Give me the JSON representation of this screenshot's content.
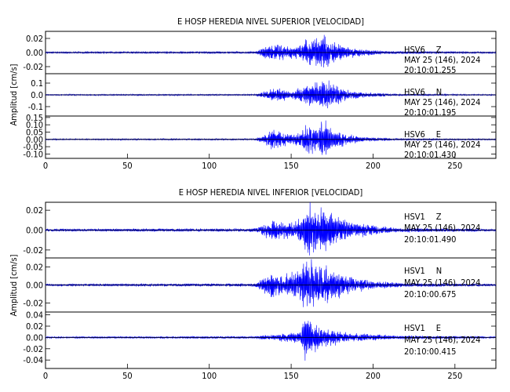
{
  "chart_data": [
    {
      "type": "line",
      "title": "E HOSP HEREDIA NIVEL SUPERIOR [VELOCIDAD]",
      "ylabel": "Amplitud [cm/s]",
      "xlim": [
        0,
        275
      ],
      "x_ticks": [
        "0",
        "50",
        "100",
        "150",
        "200",
        "250"
      ],
      "series": [
        {
          "name": "HSV6 Z",
          "station": "HSV6",
          "component": "Z",
          "date": "MAY 25 (146), 2024",
          "start_time": "20:10:01.255",
          "ylim": [
            -0.03,
            0.03
          ],
          "y_ticks": [
            "0.02",
            "0.00",
            "-0.02"
          ],
          "y_tick_values": [
            0.02,
            0.0,
            -0.02
          ],
          "noise_amp": 0.0012,
          "envelope": [
            [
              0,
              0.0012
            ],
            [
              128,
              0.0015
            ],
            [
              132,
              0.006
            ],
            [
              138,
              0.012
            ],
            [
              145,
              0.01
            ],
            [
              152,
              0.007
            ],
            [
              157,
              0.012
            ],
            [
              161,
              0.02
            ],
            [
              165,
              0.016
            ],
            [
              170,
              0.026
            ],
            [
              175,
              0.016
            ],
            [
              182,
              0.009
            ],
            [
              190,
              0.005
            ],
            [
              210,
              0.002
            ],
            [
              275,
              0.0012
            ]
          ]
        },
        {
          "name": "HSV6 N",
          "station": "HSV6",
          "component": "N",
          "date": "MAY 25 (146), 2024",
          "start_time": "20:10:01.195",
          "ylim": [
            -0.18,
            0.18
          ],
          "y_ticks": [
            "0.1",
            "0.0",
            "-0.1"
          ],
          "y_tick_values": [
            0.1,
            0.0,
            -0.1
          ],
          "noise_amp": 0.005,
          "envelope": [
            [
              0,
              0.005
            ],
            [
              128,
              0.006
            ],
            [
              133,
              0.03
            ],
            [
              138,
              0.05
            ],
            [
              145,
              0.045
            ],
            [
              150,
              0.03
            ],
            [
              155,
              0.05
            ],
            [
              160,
              0.09
            ],
            [
              165,
              0.1
            ],
            [
              170,
              0.14
            ],
            [
              176,
              0.08
            ],
            [
              185,
              0.04
            ],
            [
              195,
              0.02
            ],
            [
              215,
              0.008
            ],
            [
              275,
              0.005
            ]
          ]
        },
        {
          "name": "HSV6 E",
          "station": "HSV6",
          "component": "E",
          "date": "MAY 25 (146), 2024",
          "start_time": "20:10:01.430",
          "ylim": [
            -0.13,
            0.16
          ],
          "y_ticks": [
            "0.15",
            "0.10",
            "0.05",
            "0.00",
            "-0.05",
            "-0.10"
          ],
          "y_tick_values": [
            0.15,
            0.1,
            0.05,
            0.0,
            -0.05,
            -0.1
          ],
          "noise_amp": 0.004,
          "envelope": [
            [
              0,
              0.004
            ],
            [
              128,
              0.005
            ],
            [
              133,
              0.03
            ],
            [
              138,
              0.06
            ],
            [
              145,
              0.05
            ],
            [
              150,
              0.03
            ],
            [
              156,
              0.06
            ],
            [
              162,
              0.1
            ],
            [
              166,
              0.08
            ],
            [
              170,
              0.13
            ],
            [
              176,
              0.07
            ],
            [
              185,
              0.03
            ],
            [
              195,
              0.015
            ],
            [
              215,
              0.006
            ],
            [
              275,
              0.004
            ]
          ]
        }
      ]
    },
    {
      "type": "line",
      "title": "E HOSP HEREDIA NIVEL INFERIOR [VELOCIDAD]",
      "ylabel": "Amplitud [cm/s]",
      "xlim": [
        0,
        275
      ],
      "x_ticks": [
        "0",
        "50",
        "100",
        "150",
        "200",
        "250"
      ],
      "series": [
        {
          "name": "HSV1 Z",
          "station": "HSV1",
          "component": "Z",
          "date": "MAY 25 (146), 2024",
          "start_time": "20:10:01.490",
          "ylim": [
            -0.028,
            0.028
          ],
          "y_ticks": [
            "0.02",
            "0.00",
            "-0.02"
          ],
          "y_tick_values": [
            0.02,
            0.0,
            -0.02
          ],
          "noise_amp": 0.0012,
          "envelope": [
            [
              0,
              0.0012
            ],
            [
              128,
              0.0016
            ],
            [
              133,
              0.006
            ],
            [
              138,
              0.01
            ],
            [
              145,
              0.009
            ],
            [
              152,
              0.007
            ],
            [
              157,
              0.015
            ],
            [
              160,
              0.028
            ],
            [
              163,
              0.02
            ],
            [
              168,
              0.022
            ],
            [
              174,
              0.016
            ],
            [
              182,
              0.01
            ],
            [
              192,
              0.006
            ],
            [
              215,
              0.002
            ],
            [
              275,
              0.0012
            ]
          ]
        },
        {
          "name": "HSV1 N",
          "station": "HSV1",
          "component": "N",
          "date": "MAY 25 (146), 2024",
          "start_time": "20:10:00.675",
          "ylim": [
            -0.03,
            0.03
          ],
          "y_ticks": [
            "0.02",
            "0.00",
            "-0.02"
          ],
          "y_tick_values": [
            0.02,
            0.0,
            -0.02
          ],
          "noise_amp": 0.0012,
          "envelope": [
            [
              0,
              0.0012
            ],
            [
              128,
              0.0016
            ],
            [
              133,
              0.008
            ],
            [
              138,
              0.012
            ],
            [
              145,
              0.01
            ],
            [
              152,
              0.012
            ],
            [
              157,
              0.02
            ],
            [
              160,
              0.03
            ],
            [
              164,
              0.022
            ],
            [
              170,
              0.02
            ],
            [
              178,
              0.014
            ],
            [
              188,
              0.008
            ],
            [
              200,
              0.004
            ],
            [
              220,
              0.002
            ],
            [
              275,
              0.0012
            ]
          ]
        },
        {
          "name": "HSV1 E",
          "station": "HSV1",
          "component": "E",
          "date": "MAY 25 (146), 2024",
          "start_time": "20:10:00.415",
          "ylim": [
            -0.055,
            0.045
          ],
          "y_ticks": [
            "0.04",
            "0.02",
            "0.00",
            "-0.02",
            "-0.04"
          ],
          "y_tick_values": [
            0.04,
            0.02,
            0.0,
            -0.02,
            -0.04
          ],
          "noise_amp": 0.0015,
          "envelope": [
            [
              0,
              0.0015
            ],
            [
              128,
              0.002
            ],
            [
              133,
              0.004
            ],
            [
              140,
              0.005
            ],
            [
              150,
              0.008
            ],
            [
              156,
              0.012
            ],
            [
              159,
              0.045
            ],
            [
              162,
              0.03
            ],
            [
              166,
              0.02
            ],
            [
              172,
              0.014
            ],
            [
              180,
              0.01
            ],
            [
              195,
              0.006
            ],
            [
              215,
              0.003
            ],
            [
              275,
              0.0015
            ]
          ]
        }
      ]
    }
  ]
}
